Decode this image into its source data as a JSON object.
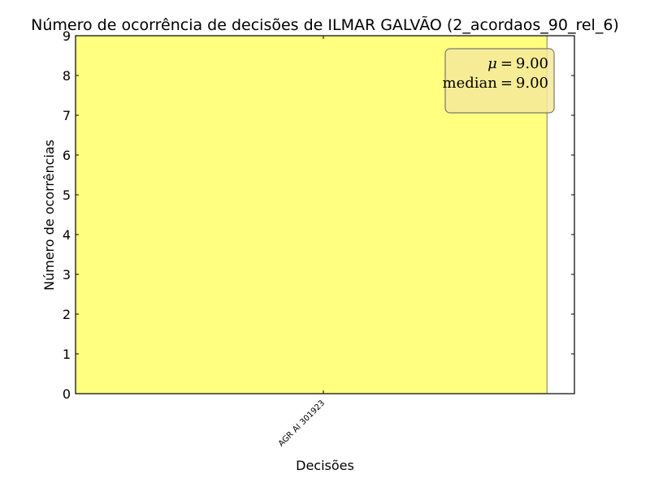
{
  "chart_data": {
    "type": "bar",
    "title": "Número de ocorrência de decisões de ILMAR GALVÃO (2_acordaos_90_rel_6)",
    "xlabel": "Decisões",
    "ylabel": "Número de ocorrências",
    "categories": [
      "AGR AI 301923"
    ],
    "values": [
      9
    ],
    "ylim": [
      0,
      9
    ],
    "yticks": [
      "0",
      "1",
      "2",
      "3",
      "4",
      "5",
      "6",
      "7",
      "8",
      "9"
    ],
    "grid": false,
    "bar_color": "#ffff80",
    "bar_edge_color": "#808060",
    "stats_box": {
      "mean_symbol": "μ",
      "mean_value": "9.00",
      "median_label": "median",
      "median_value": "9.00",
      "placement": "top-right",
      "background": "#f6e99a"
    }
  }
}
